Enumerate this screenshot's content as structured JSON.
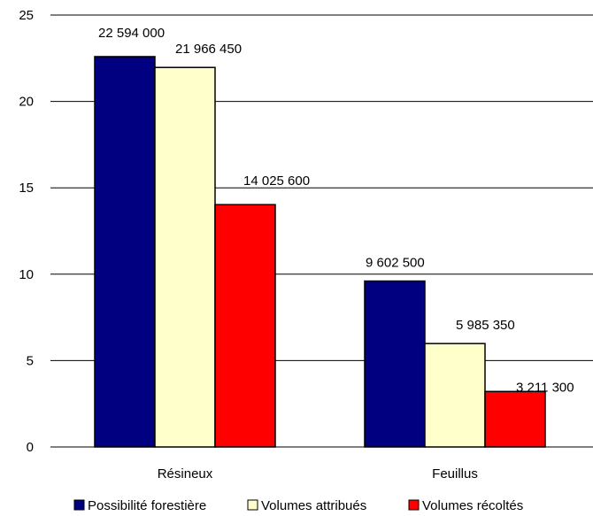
{
  "chart_data": {
    "type": "bar",
    "title": "",
    "xlabel": "",
    "ylabel": "",
    "ylim": [
      0,
      25
    ],
    "yticks": [
      0,
      5,
      10,
      15,
      20,
      25
    ],
    "grid": true,
    "legend_position": "bottom",
    "categories": [
      "Résineux",
      "Feuillus"
    ],
    "series": [
      {
        "name": "Possibilité forestière",
        "color": "#000080",
        "values": [
          22.594,
          9.6025
        ],
        "labels": [
          "22 594 000",
          "9 602 500"
        ]
      },
      {
        "name": "Volumes attribués",
        "color": "#FFFFCC",
        "values": [
          21.96645,
          5.98535
        ],
        "labels": [
          "21 966 450",
          "5 985 350"
        ]
      },
      {
        "name": "Volumes récoltés",
        "color": "#FF0000",
        "values": [
          14.0256,
          3.2113
        ],
        "labels": [
          "14 025 600",
          "3 211 300"
        ]
      }
    ]
  }
}
